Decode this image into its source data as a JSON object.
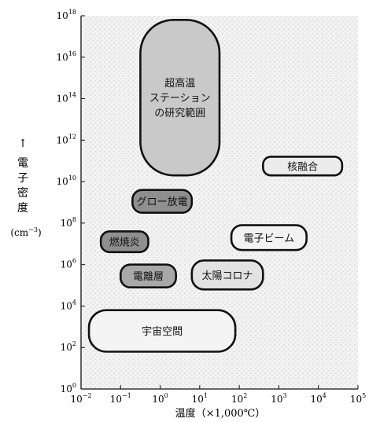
{
  "figure": {
    "x_axis": {
      "label": "温度（×1,000℃）",
      "ticks": [
        {
          "exp": "-2"
        },
        {
          "exp": "-1"
        },
        {
          "exp": "0"
        },
        {
          "exp": "1"
        },
        {
          "exp": "2"
        },
        {
          "exp": "3"
        },
        {
          "exp": "4"
        },
        {
          "exp": "5"
        }
      ]
    },
    "y_axis": {
      "arrow": "↑",
      "label_lines": [
        "電",
        "子",
        "密",
        "度"
      ],
      "unit": "(cm",
      "unit_exp": "−3",
      "unit_close": ")",
      "ticks": [
        {
          "exp": "0"
        },
        {
          "exp": "2"
        },
        {
          "exp": "4"
        },
        {
          "exp": "6"
        },
        {
          "exp": "8"
        },
        {
          "exp": "10"
        },
        {
          "exp": "12"
        },
        {
          "exp": "14"
        },
        {
          "exp": "16"
        },
        {
          "exp": "18"
        }
      ]
    },
    "regions": [
      {
        "id": "super-high-temp-station",
        "lines": [
          "超高温",
          "ステーション",
          "の研究範囲"
        ],
        "fill": "#c9c9c9",
        "log_temp_range": [
          -0.5,
          1.5
        ],
        "log_density_range": [
          10.3,
          17.8
        ]
      },
      {
        "id": "nuclear-fusion",
        "lines": [
          "核融合"
        ],
        "fill": "#ececec",
        "log_temp_range": [
          2.6,
          4.6
        ],
        "log_density_range": [
          10.3,
          11.2
        ]
      },
      {
        "id": "glow-discharge",
        "lines": [
          "グロー放電"
        ],
        "fill": "#8f8f8f",
        "log_temp_range": [
          -0.7,
          0.8
        ],
        "log_density_range": [
          8.5,
          9.6
        ]
      },
      {
        "id": "combustion-flame",
        "lines": [
          "燃焼炎"
        ],
        "fill": "#8f8f8f",
        "log_temp_range": [
          -1.5,
          -0.3
        ],
        "log_density_range": [
          6.6,
          7.6
        ]
      },
      {
        "id": "electron-beam",
        "lines": [
          "電子ビーム"
        ],
        "fill": "#f2f2f2",
        "log_temp_range": [
          1.8,
          3.7
        ],
        "log_density_range": [
          6.7,
          7.9
        ]
      },
      {
        "id": "ionosphere",
        "lines": [
          "電離層"
        ],
        "fill": "#a8a8a8",
        "log_temp_range": [
          -1,
          0.4
        ],
        "log_density_range": [
          4.9,
          6
        ]
      },
      {
        "id": "solar-corona",
        "lines": [
          "太陽コロナ"
        ],
        "fill": "#e2e2e2",
        "log_temp_range": [
          0.8,
          2.6
        ],
        "log_density_range": [
          4.8,
          6.2
        ]
      },
      {
        "id": "outer-space",
        "lines": [
          "宇宙空間"
        ],
        "fill": "#f4f4f4",
        "log_temp_range": [
          -1.8,
          1.9
        ],
        "log_density_range": [
          1.8,
          3.8
        ]
      }
    ]
  }
}
